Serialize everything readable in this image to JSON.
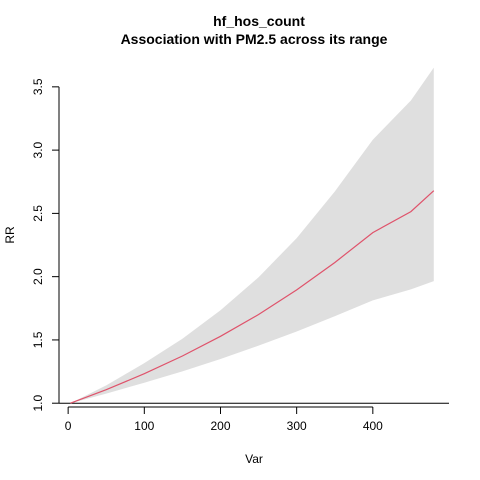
{
  "chart_data": {
    "type": "line",
    "title": "hf_hos_count",
    "subtitle": "Association with PM2.5 across its range",
    "xlabel": "Var",
    "ylabel": "RR",
    "xlim": [
      -12,
      500
    ],
    "ylim": [
      0.97,
      3.72
    ],
    "x_ticks": [
      0,
      100,
      200,
      300,
      400
    ],
    "y_ticks": [
      1.0,
      1.5,
      2.0,
      2.5,
      3.0,
      3.5
    ],
    "y_tick_labels": [
      "1.0",
      "1.5",
      "2.0",
      "2.5",
      "3.0",
      "3.5"
    ],
    "reference_line": 1.0,
    "grid": false,
    "legend": "none",
    "series": [
      {
        "x": [
          3,
          50,
          100,
          150,
          200,
          250,
          300,
          350,
          400,
          450,
          480
        ],
        "y": [
          1.0,
          1.107,
          1.233,
          1.373,
          1.529,
          1.701,
          1.895,
          2.111,
          2.348,
          2.514,
          2.679
        ],
        "lower": [
          1.0,
          1.076,
          1.162,
          1.251,
          1.349,
          1.455,
          1.567,
          1.687,
          1.812,
          1.899,
          1.965
        ],
        "upper": [
          1.0,
          1.141,
          1.317,
          1.509,
          1.734,
          1.996,
          2.305,
          2.672,
          3.082,
          3.392,
          3.652
        ],
        "color": "#df536b",
        "band_color": "#dfdfdf"
      }
    ]
  }
}
